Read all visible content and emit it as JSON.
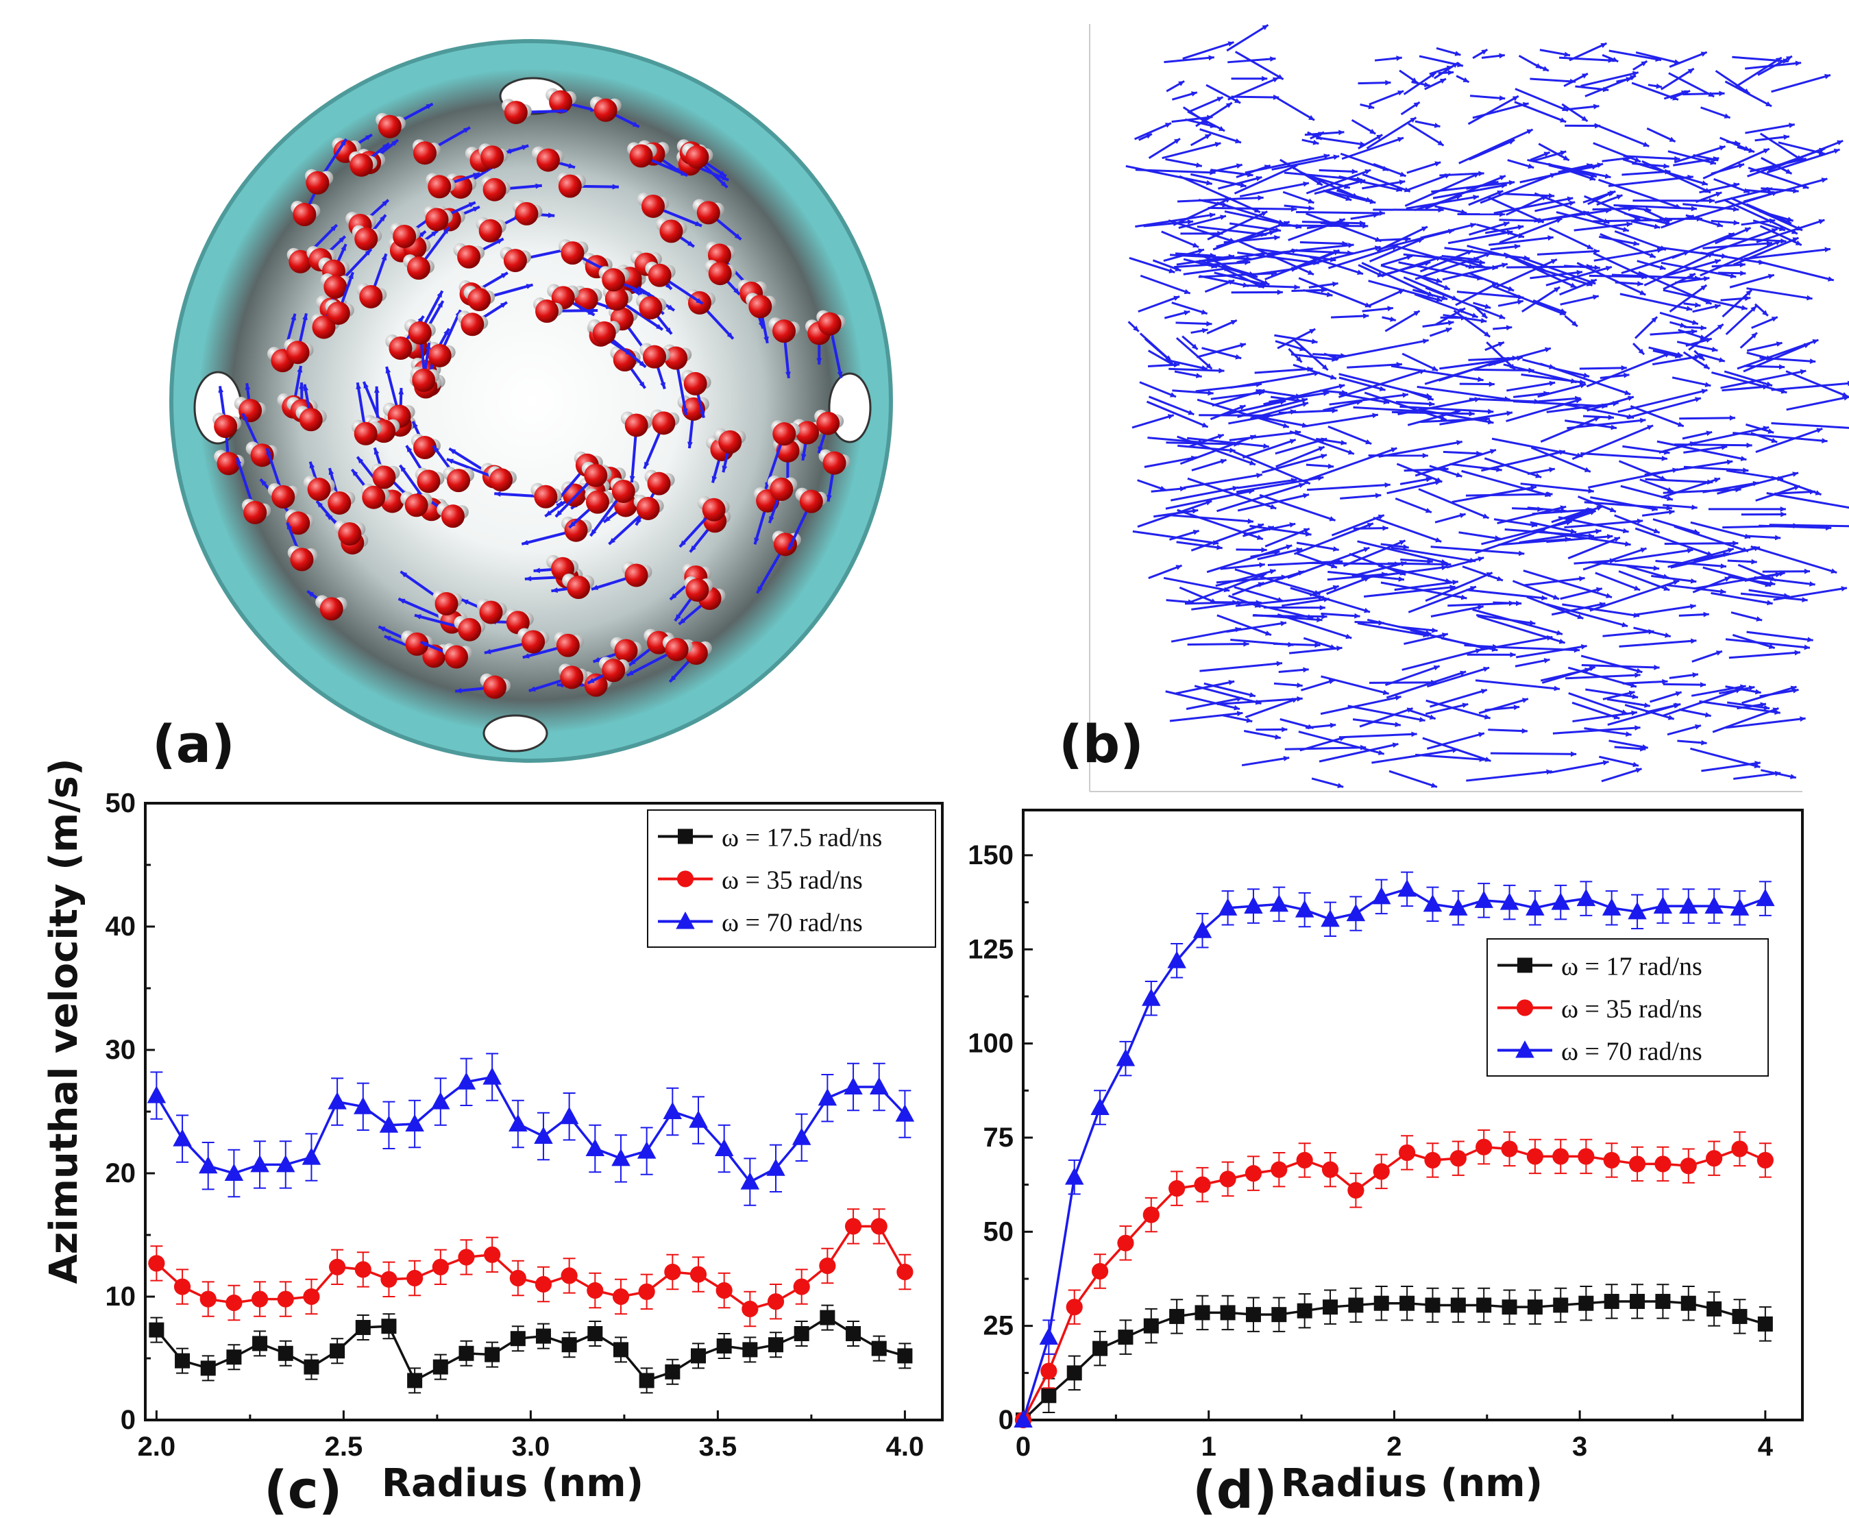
{
  "panels": {
    "a": {
      "label": "(a)",
      "description_icon": "nanotube-water-snapshot"
    },
    "b": {
      "label": "(b)",
      "description_icon": "velocity-vector-field"
    },
    "c": {
      "label": "(c)"
    },
    "d": {
      "label": "(d)"
    }
  },
  "colors": {
    "black": "#111111",
    "red": "#ee1111",
    "blue": "#1a1aee",
    "tube": "#6cc4c4",
    "arrow": "#2222ee"
  },
  "chart_data": [
    {
      "id": "c",
      "type": "line",
      "xlabel": "Radius (nm)",
      "ylabel": "Azimuthal velocity (m/s)",
      "xlim": [
        1.97,
        4.1
      ],
      "ylim": [
        0,
        50
      ],
      "xticks": [
        "2.0",
        "2.5",
        "3.0",
        "3.5",
        "4.0"
      ],
      "xtick_values": [
        2.0,
        2.5,
        3.0,
        3.5,
        4.0
      ],
      "yticks": [
        "0",
        "10",
        "20",
        "30",
        "40",
        "50"
      ],
      "ytick_values": [
        0,
        10,
        20,
        30,
        40,
        50
      ],
      "legend_position": "top-right",
      "x": [
        2.0,
        2.069,
        2.138,
        2.207,
        2.276,
        2.345,
        2.414,
        2.483,
        2.552,
        2.621,
        2.69,
        2.759,
        2.828,
        2.897,
        2.966,
        3.034,
        3.103,
        3.172,
        3.241,
        3.31,
        3.379,
        3.448,
        3.517,
        3.586,
        3.655,
        3.724,
        3.793,
        3.862,
        3.931,
        4.0
      ],
      "series": [
        {
          "name": "ω = 17.5 rad/ns",
          "color": "#111111",
          "marker": "square",
          "values": [
            7.3,
            4.8,
            4.2,
            5.1,
            6.2,
            5.4,
            4.3,
            5.6,
            7.5,
            7.6,
            3.2,
            4.3,
            5.4,
            5.3,
            6.6,
            6.8,
            6.1,
            7.0,
            5.7,
            3.2,
            3.9,
            5.2,
            6.0,
            5.7,
            6.1,
            7.0,
            8.3,
            7.0,
            5.8,
            5.2
          ],
          "error": 1.0
        },
        {
          "name": "ω = 35 rad/ns",
          "color": "#ee1111",
          "marker": "circle",
          "values": [
            12.7,
            10.8,
            9.8,
            9.5,
            9.8,
            9.8,
            10.0,
            12.4,
            12.2,
            11.4,
            11.5,
            12.4,
            13.2,
            13.4,
            11.5,
            11.0,
            11.7,
            10.5,
            10.0,
            10.4,
            12.0,
            11.8,
            10.5,
            9.0,
            9.6,
            10.8,
            12.5,
            15.7,
            15.7,
            12.0
          ],
          "error": 1.4
        },
        {
          "name": "ω = 70 rad/ns",
          "color": "#1a1aee",
          "marker": "triangle",
          "values": [
            26.3,
            22.8,
            20.6,
            20.0,
            20.7,
            20.7,
            21.3,
            25.8,
            25.4,
            23.9,
            24.0,
            25.8,
            27.4,
            27.8,
            24.0,
            23.0,
            24.6,
            22.0,
            21.2,
            21.8,
            25.0,
            24.3,
            22.0,
            19.3,
            20.4,
            22.9,
            26.1,
            27.0,
            27.0,
            24.8
          ],
          "error": 1.9
        }
      ]
    },
    {
      "id": "d",
      "type": "line",
      "xlabel": "Radius (nm)",
      "ylabel": "",
      "xlim": [
        0,
        4.2
      ],
      "ylim": [
        0,
        162
      ],
      "xticks": [
        "0",
        "1",
        "2",
        "3",
        "4"
      ],
      "xtick_values": [
        0,
        1,
        2,
        3,
        4
      ],
      "yticks": [
        "0",
        "25",
        "50",
        "75",
        "100",
        "125",
        "150"
      ],
      "ytick_values": [
        0,
        25,
        50,
        75,
        100,
        125,
        150
      ],
      "legend_position": "middle-right",
      "x": [
        0,
        0.138,
        0.276,
        0.414,
        0.552,
        0.69,
        0.828,
        0.966,
        1.103,
        1.241,
        1.379,
        1.517,
        1.655,
        1.793,
        1.931,
        2.069,
        2.207,
        2.345,
        2.483,
        2.621,
        2.759,
        2.897,
        3.034,
        3.172,
        3.31,
        3.448,
        3.586,
        3.724,
        3.862,
        4.0
      ],
      "series": [
        {
          "name": "ω = 17 rad/ns",
          "color": "#111111",
          "marker": "square",
          "values": [
            0,
            6.5,
            12.5,
            19,
            22,
            25,
            27.5,
            28.5,
            28.5,
            28,
            28,
            29,
            30,
            30.5,
            31,
            31,
            30.5,
            30.5,
            30.5,
            30,
            30,
            30.5,
            31,
            31.5,
            31.5,
            31.5,
            31,
            29.5,
            27.5,
            25.5
          ],
          "error": 4.5
        },
        {
          "name": "ω = 35 rad/ns",
          "color": "#ee1111",
          "marker": "circle",
          "values": [
            0,
            13,
            30,
            39.5,
            47,
            54.5,
            61.5,
            62.5,
            64,
            65.5,
            66.5,
            69,
            66.5,
            61,
            66,
            71,
            69,
            69.5,
            72.5,
            72,
            70,
            70,
            70,
            69,
            68,
            68,
            67.5,
            69.5,
            72,
            69
          ],
          "error": 4.5
        },
        {
          "name": "ω = 70 rad/ns",
          "color": "#1a1aee",
          "marker": "triangle",
          "values": [
            0,
            22,
            64.5,
            83,
            96,
            112,
            122,
            130,
            136,
            136.5,
            137,
            135.5,
            133,
            134.5,
            139,
            141,
            137,
            136,
            138,
            137.5,
            136,
            137.5,
            138.5,
            136,
            135,
            136.5,
            136.5,
            136.5,
            136,
            138.5
          ],
          "error": 4.5
        }
      ]
    }
  ]
}
